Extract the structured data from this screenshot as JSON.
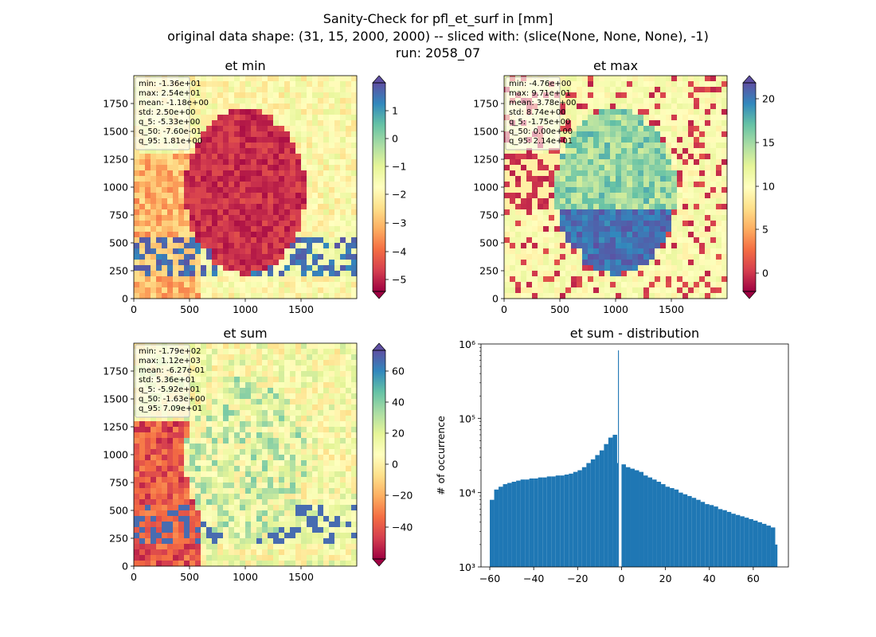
{
  "figure": {
    "title_lines": [
      "Sanity-Check for pfl_et_surf in [mm]",
      "original data shape: (31, 15, 2000, 2000) -- sliced with: (slice(None, None, None), -1)",
      "run: 2058_07"
    ]
  },
  "chart_data": [
    {
      "type": "heatmap",
      "title": "et min",
      "xlim": [
        0,
        2000
      ],
      "ylim": [
        0,
        2000
      ],
      "xticks": [
        "0",
        "500",
        "1000",
        "1500"
      ],
      "yticks": [
        "0",
        "250",
        "500",
        "750",
        "1000",
        "1250",
        "1500",
        "1750"
      ],
      "colormap": "Spectral",
      "color_range": [
        -5.33,
        1.81
      ],
      "colorbar_ticks": [
        "−5",
        "−4",
        "−3",
        "−2",
        "−1",
        "0",
        "1"
      ],
      "stats": [
        "min: -1.36e+01",
        "max: 2.54e+01",
        "mean: -1.18e+00",
        "std: 2.50e+00",
        "q_5: -5.33e+00",
        "q_50: -7.60e-01",
        "q_95: 1.81e+00"
      ]
    },
    {
      "type": "heatmap",
      "title": "et max",
      "xlim": [
        0,
        2000
      ],
      "ylim": [
        0,
        2000
      ],
      "xticks": [
        "0",
        "500",
        "1000",
        "1500"
      ],
      "yticks": [
        "0",
        "250",
        "500",
        "750",
        "1000",
        "1250",
        "1500",
        "1750"
      ],
      "colormap": "Spectral",
      "color_range": [
        -1.75,
        21.4
      ],
      "colorbar_ticks": [
        "0",
        "5",
        "10",
        "15",
        "20"
      ],
      "stats": [
        "min: -4.76e+00",
        "max: 9.71e+01",
        "mean: 3.78e+00",
        "std: 8.74e+00",
        "q_5: -1.75e+00",
        "q_50: 0.00e+00",
        "q_95: 2.14e+01"
      ]
    },
    {
      "type": "heatmap",
      "title": "et sum",
      "xlim": [
        0,
        2000
      ],
      "ylim": [
        0,
        2000
      ],
      "xticks": [
        "0",
        "500",
        "1000",
        "1500"
      ],
      "yticks": [
        "0",
        "250",
        "500",
        "750",
        "1000",
        "1250",
        "1500",
        "1750"
      ],
      "colormap": "Spectral",
      "color_range": [
        -59.2,
        70.9
      ],
      "colorbar_ticks": [
        "−40",
        "−20",
        "0",
        "20",
        "40",
        "60"
      ],
      "stats": [
        "min: -1.79e+02",
        "max: 1.12e+03",
        "mean: -6.27e-01",
        "std: 5.36e+01",
        "q_5: -5.92e+01",
        "q_50: -1.63e+00",
        "q_95: 7.09e+01"
      ]
    },
    {
      "type": "bar",
      "title": "et sum - distribution",
      "ylabel": "# of occurrence",
      "xlabel": "",
      "yscale": "log",
      "xlim": [
        -64,
        76
      ],
      "ylim": [
        1000,
        1000000
      ],
      "xticks": [
        "−60",
        "−40",
        "−20",
        "0",
        "20",
        "40",
        "60"
      ],
      "yticks": [
        "10³",
        "10⁴",
        "10⁵",
        "10⁶"
      ],
      "color": "#1f77b4",
      "x": [
        -60,
        -58,
        -56,
        -54,
        -52,
        -50,
        -48,
        -46,
        -44,
        -42,
        -40,
        -38,
        -36,
        -34,
        -32,
        -30,
        -28,
        -26,
        -24,
        -22,
        -20,
        -18,
        -16,
        -14,
        -12,
        -10,
        -8,
        -6,
        -4,
        -2,
        -1.5,
        0,
        2,
        4,
        6,
        8,
        10,
        12,
        14,
        16,
        18,
        20,
        22,
        24,
        26,
        28,
        30,
        32,
        34,
        36,
        38,
        40,
        42,
        44,
        46,
        48,
        50,
        52,
        54,
        56,
        58,
        60,
        62,
        64,
        66,
        68,
        70
      ],
      "values": [
        8000,
        11000,
        12000,
        13000,
        13500,
        14000,
        14500,
        15000,
        15000,
        15500,
        15500,
        16000,
        16000,
        16500,
        16500,
        17000,
        17000,
        17500,
        18000,
        19000,
        20000,
        22000,
        25000,
        28000,
        32000,
        37000,
        45000,
        55000,
        60000,
        25000,
        820000,
        24000,
        22000,
        21000,
        20000,
        19000,
        17000,
        16000,
        15000,
        14000,
        13000,
        12000,
        11500,
        11000,
        10000,
        9500,
        9000,
        8500,
        8000,
        7500,
        7000,
        6800,
        6500,
        6000,
        5800,
        5500,
        5200,
        5000,
        4800,
        4600,
        4400,
        4200,
        4000,
        3800,
        3600,
        3400,
        2000
      ]
    }
  ]
}
